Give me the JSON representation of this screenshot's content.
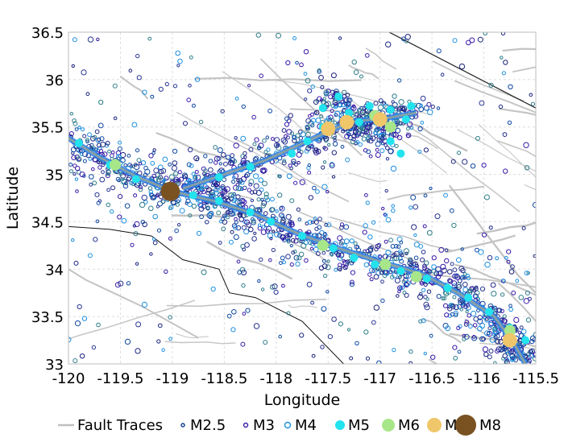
{
  "chart_data": {
    "type": "scatter",
    "xlabel": "Longitude",
    "ylabel": "Latitude",
    "xlim": [
      -120,
      -115.5
    ],
    "ylim": [
      33,
      36.5
    ],
    "xticks": [
      "-120",
      "-119.5",
      "-119",
      "-118.5",
      "-118",
      "-117.5",
      "-117",
      "-116.5",
      "-116",
      "-115.5"
    ],
    "yticks": [
      "33",
      "33.5",
      "34",
      "34.5",
      "35",
      "35.5",
      "36",
      "36.5"
    ],
    "grid": true,
    "legend_position": "bottom",
    "legend": [
      {
        "name": "Fault Traces",
        "marker": "line",
        "color": "#c0c0c0"
      },
      {
        "name": "M2.5",
        "marker": "ring-small",
        "color": "#0a3a8a"
      },
      {
        "name": "M3",
        "marker": "ring",
        "color": "#3a1aa8"
      },
      {
        "name": "M4",
        "marker": "ring-large",
        "color": "#1e90e0"
      },
      {
        "name": "M5",
        "marker": "dot",
        "color": "#22e3ee"
      },
      {
        "name": "M6",
        "marker": "dot",
        "color": "#a8e68a"
      },
      {
        "name": "M7",
        "marker": "dot",
        "color": "#f0c66a"
      },
      {
        "name": "M8",
        "marker": "dot",
        "color": "#7a5222"
      }
    ],
    "series": [
      {
        "name": "M5",
        "color": "#22e3ee",
        "points": [
          [
            -119.9,
            35.33
          ],
          [
            -119.6,
            35.1
          ],
          [
            -119.35,
            34.95
          ],
          [
            -118.8,
            34.78
          ],
          [
            -118.55,
            34.72
          ],
          [
            -118.25,
            34.6
          ],
          [
            -118.05,
            34.5
          ],
          [
            -117.75,
            34.35
          ],
          [
            -117.45,
            34.22
          ],
          [
            -117.25,
            34.12
          ],
          [
            -117.05,
            34.05
          ],
          [
            -116.8,
            33.98
          ],
          [
            -116.55,
            33.9
          ],
          [
            -116.35,
            33.8
          ],
          [
            -116.15,
            33.7
          ],
          [
            -115.95,
            33.55
          ],
          [
            -115.75,
            33.38
          ],
          [
            -115.6,
            33.25
          ],
          [
            -118.55,
            34.97
          ],
          [
            -118.25,
            35.08
          ],
          [
            -117.85,
            35.22
          ],
          [
            -117.7,
            35.35
          ],
          [
            -117.55,
            35.5
          ],
          [
            -117.3,
            35.65
          ],
          [
            -117.1,
            35.72
          ],
          [
            -116.9,
            35.68
          ],
          [
            -116.75,
            35.58
          ],
          [
            -116.9,
            35.35
          ],
          [
            -116.8,
            35.22
          ],
          [
            -117.4,
            35.82
          ],
          [
            -117.55,
            35.7
          ],
          [
            -116.7,
            35.72
          ],
          [
            -117.2,
            35.55
          ]
        ]
      },
      {
        "name": "M6",
        "color": "#a8e68a",
        "points": [
          [
            -119.55,
            35.1
          ],
          [
            -117.55,
            34.25
          ],
          [
            -116.95,
            34.05
          ],
          [
            -116.65,
            33.92
          ],
          [
            -116.9,
            35.5
          ],
          [
            -117.05,
            35.62
          ],
          [
            -115.75,
            33.35
          ]
        ]
      },
      {
        "name": "M7",
        "color": "#f0c66a",
        "points": [
          [
            -117.5,
            35.48
          ],
          [
            -117.0,
            35.58
          ],
          [
            -117.32,
            35.55
          ],
          [
            -115.75,
            33.25
          ]
        ]
      },
      {
        "name": "M8",
        "color": "#7a5222",
        "points": [
          [
            -119.02,
            34.82
          ]
        ]
      }
    ]
  }
}
